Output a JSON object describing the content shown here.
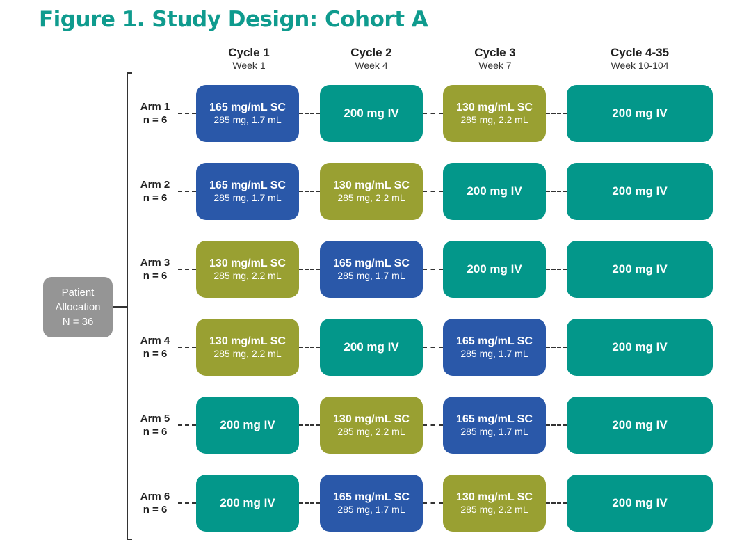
{
  "title": "Figure 1. Study Design: Cohort A",
  "colors": {
    "title": "#0f9b8e",
    "iv": "#03978a",
    "sc165": "#2a58a9",
    "sc130": "#99a032",
    "allocation": "#959595"
  },
  "columns": [
    {
      "cycle": "Cycle 1",
      "week": "Week 1"
    },
    {
      "cycle": "Cycle 2",
      "week": "Week 4"
    },
    {
      "cycle": "Cycle 3",
      "week": "Week 7"
    },
    {
      "cycle": "Cycle 4-35",
      "week": "Week 10-104"
    }
  ],
  "allocation": {
    "line1": "Patient",
    "line2": "Allocation",
    "line3": "N = 36"
  },
  "arms": [
    {
      "name": "Arm 1",
      "n": "n = 6",
      "cells": [
        {
          "type": "sc165",
          "line1": "165 mg/mL SC",
          "line2": "285 mg, 1.7 mL"
        },
        {
          "type": "iv",
          "line1": "200 mg IV",
          "line2": ""
        },
        {
          "type": "sc130",
          "line1": "130 mg/mL SC",
          "line2": "285 mg,  2.2 mL"
        },
        {
          "type": "iv",
          "line1": "200 mg IV",
          "line2": ""
        }
      ]
    },
    {
      "name": "Arm 2",
      "n": "n = 6",
      "cells": [
        {
          "type": "sc165",
          "line1": "165 mg/mL SC",
          "line2": "285 mg, 1.7 mL"
        },
        {
          "type": "sc130",
          "line1": "130 mg/mL SC",
          "line2": "285 mg, 2.2 mL"
        },
        {
          "type": "iv",
          "line1": "200 mg IV",
          "line2": ""
        },
        {
          "type": "iv",
          "line1": "200 mg IV",
          "line2": ""
        }
      ]
    },
    {
      "name": "Arm 3",
      "n": "n = 6",
      "cells": [
        {
          "type": "sc130",
          "line1": "130 mg/mL SC",
          "line2": "285 mg, 2.2 mL"
        },
        {
          "type": "sc165",
          "line1": "165 mg/mL SC",
          "line2": "285 mg, 1.7 mL"
        },
        {
          "type": "iv",
          "line1": "200 mg IV",
          "line2": ""
        },
        {
          "type": "iv",
          "line1": "200 mg IV",
          "line2": ""
        }
      ]
    },
    {
      "name": "Arm 4",
      "n": "n = 6",
      "cells": [
        {
          "type": "sc130",
          "line1": "130 mg/mL SC",
          "line2": "285 mg, 2.2 mL"
        },
        {
          "type": "iv",
          "line1": "200 mg IV",
          "line2": ""
        },
        {
          "type": "sc165",
          "line1": "165 mg/mL SC",
          "line2": "285 mg, 1.7 mL"
        },
        {
          "type": "iv",
          "line1": "200 mg IV",
          "line2": ""
        }
      ]
    },
    {
      "name": "Arm 5",
      "n": "n = 6",
      "cells": [
        {
          "type": "iv",
          "line1": "200 mg IV",
          "line2": ""
        },
        {
          "type": "sc130",
          "line1": "130 mg/mL SC",
          "line2": "285 mg, 2.2 mL"
        },
        {
          "type": "sc165",
          "line1": "165 mg/mL SC",
          "line2": "285 mg, 1.7 mL"
        },
        {
          "type": "iv",
          "line1": "200 mg IV",
          "line2": ""
        }
      ]
    },
    {
      "name": "Arm 6",
      "n": "n = 6",
      "cells": [
        {
          "type": "iv",
          "line1": "200 mg IV",
          "line2": ""
        },
        {
          "type": "sc165",
          "line1": "165 mg/mL SC",
          "line2": "285 mg, 1.7 mL"
        },
        {
          "type": "sc130",
          "line1": "130 mg/mL SC",
          "line2": "285 mg, 2.2 mL"
        },
        {
          "type": "iv",
          "line1": "200 mg IV",
          "line2": ""
        }
      ]
    }
  ]
}
